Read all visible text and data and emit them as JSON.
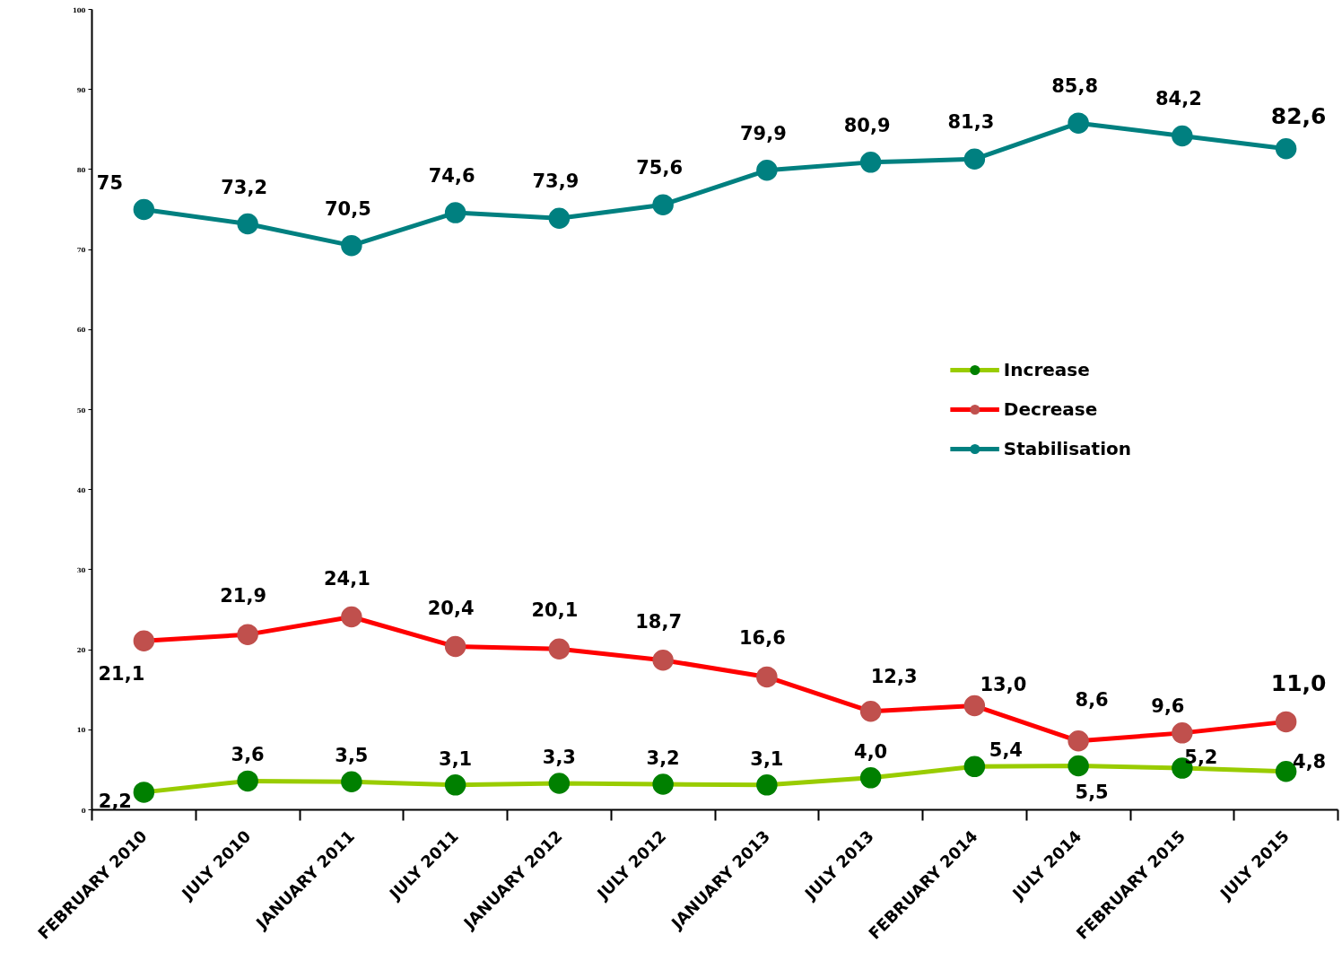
{
  "chart_data": {
    "type": "line",
    "categories": [
      "FEBRUARY 2010",
      "JULY 2010",
      "JANUARY 2011",
      "JULY 2011",
      "JANUARY 2012",
      "JULY 2012",
      "JANUARY 2013",
      "JULY 2013",
      "FEBRUARY 2014",
      "JULY 2014",
      "FEBRUARY 2015",
      "JULY 2015"
    ],
    "series": [
      {
        "name": "Increase",
        "color": "#99cc00",
        "colors": [
          "#008000",
          "#008000",
          "#008000",
          "#008000",
          "#008000",
          "#008000",
          "#008000",
          "#008000",
          "#008000",
          "#008000",
          "#008000",
          "#008000"
        ],
        "values": [
          2.2,
          3.6,
          3.5,
          3.1,
          3.3,
          3.2,
          3.1,
          4.0,
          5.4,
          5.5,
          5.2,
          4.8
        ],
        "value_labels": [
          "2,2",
          "3,6",
          "3,5",
          "3,1",
          "3,3",
          "3,2",
          "3,1",
          "4,0",
          "5,4",
          "5,5",
          "5,2",
          "4,8"
        ]
      },
      {
        "name": "Decrease",
        "color": "#ff0000",
        "colors": [
          "#c0504d",
          "#c0504d",
          "#c0504d",
          "#c0504d",
          "#c0504d",
          "#c0504d",
          "#c0504d",
          "#c0504d",
          "#c0504d",
          "#c0504d",
          "#c0504d",
          "#c0504d"
        ],
        "values": [
          21.1,
          21.9,
          24.1,
          20.4,
          20.1,
          18.7,
          16.6,
          12.3,
          13.0,
          8.6,
          9.6,
          11.0
        ],
        "value_labels": [
          "21,1",
          "21,9",
          "24,1",
          "20,4",
          "20,1",
          "18,7",
          "16,6",
          "12,3",
          "13,0",
          "8,6",
          "9,6",
          "11,0"
        ]
      },
      {
        "name": "Stabilisation",
        "color": "#008080",
        "colors": [
          "#008080",
          "#008080",
          "#008080",
          "#008080",
          "#008080",
          "#008080",
          "#008080",
          "#008080",
          "#008080",
          "#008080",
          "#008080",
          "#008080"
        ],
        "values": [
          75,
          73.2,
          70.5,
          74.6,
          73.9,
          75.6,
          79.9,
          80.9,
          81.3,
          85.8,
          84.2,
          82.6
        ],
        "value_labels": [
          "75",
          "73,2",
          "70,5",
          "74,6",
          "73,9",
          "75,6",
          "79,9",
          "80,9",
          "81,3",
          "85,8",
          "84,2",
          "82,6"
        ]
      }
    ],
    "ylim": [
      0,
      100
    ],
    "yticks": [
      0,
      10,
      20,
      30,
      40,
      50,
      60,
      70,
      80,
      90,
      100
    ],
    "legend": "right",
    "marker": "circle",
    "line_style": "solid",
    "grid": false
  }
}
